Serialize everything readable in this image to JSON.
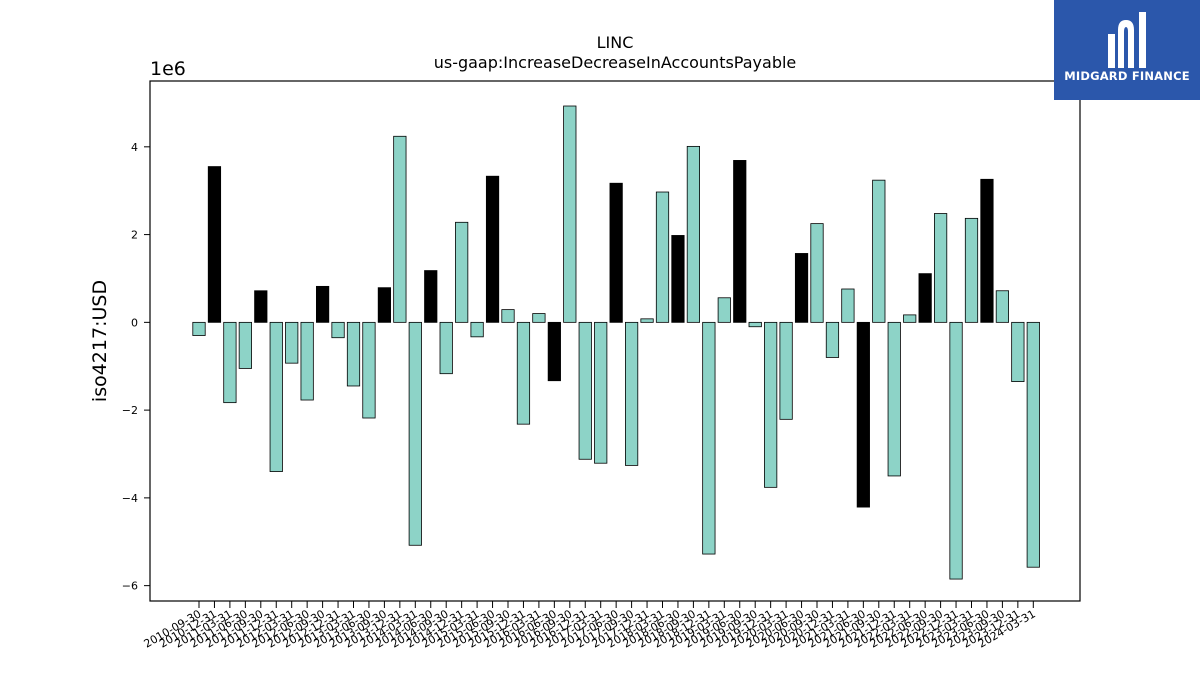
{
  "brand": {
    "name": "MIDGARD FINANCE",
    "icon": "midgard-logo-icon",
    "color": "#2b57ab"
  },
  "chart_data": {
    "type": "bar",
    "title": "LINC",
    "subtitle": "us-gaap:IncreaseDecreaseInAccountsPayable",
    "ylabel": "iso4217:USD",
    "xlabel": "",
    "scale_label": "1e6",
    "ylim": [
      -6350000,
      5500000
    ],
    "yticks": [
      -6000000,
      -4000000,
      -2000000,
      0,
      2000000,
      4000000
    ],
    "ytick_labels": [
      "−6",
      "−4",
      "−2",
      "0",
      "2",
      "4"
    ],
    "grid": false,
    "colors": {
      "default": "#8dd3c7",
      "highlight": "#000000",
      "edge": "#000000"
    },
    "categories": [
      "2010-09-30",
      "2010-12-31",
      "2011-03-31",
      "2011-06-30",
      "2011-09-30",
      "2011-12-31",
      "2012-03-31",
      "2012-06-30",
      "2012-09-30",
      "2012-12-31",
      "2013-03-31",
      "2013-06-30",
      "2013-09-30",
      "2013-12-31",
      "2014-03-31",
      "2014-06-30",
      "2014-09-30",
      "2014-12-31",
      "2015-03-31",
      "2015-06-30",
      "2015-09-30",
      "2015-12-31",
      "2016-03-31",
      "2016-06-30",
      "2016-09-30",
      "2016-12-31",
      "2017-03-31",
      "2017-06-30",
      "2017-09-30",
      "2017-12-31",
      "2018-03-31",
      "2018-06-30",
      "2018-09-30",
      "2018-12-31",
      "2019-03-31",
      "2019-06-30",
      "2019-09-30",
      "2019-12-31",
      "2020-03-31",
      "2020-06-30",
      "2020-09-30",
      "2020-12-31",
      "2021-03-31",
      "2021-06-30",
      "2021-09-30",
      "2021-12-31",
      "2022-03-31",
      "2022-06-30",
      "2022-09-30",
      "2022-12-31",
      "2023-03-31",
      "2023-06-30",
      "2023-09-30",
      "2023-12-31",
      "2024-03-31"
    ],
    "values": [
      -300000,
      3550000,
      -1830000,
      -1050000,
      720000,
      -3400000,
      -930000,
      -1770000,
      820000,
      -350000,
      -1450000,
      -2180000,
      790000,
      4240000,
      -5080000,
      1180000,
      -1170000,
      2280000,
      -330000,
      3330000,
      290000,
      -2320000,
      200000,
      -1330000,
      4930000,
      -3120000,
      -3210000,
      3170000,
      -3260000,
      80000,
      2970000,
      1980000,
      4010000,
      -5280000,
      560000,
      3690000,
      -100000,
      -3760000,
      -2210000,
      1570000,
      2250000,
      -800000,
      760000,
      -4210000,
      3240000,
      -3500000,
      170000,
      1110000,
      2480000,
      -5850000,
      2370000,
      3260000,
      720000,
      -1350000,
      -5580000
    ],
    "highlighted": [
      "2010-12-31",
      "2011-09-30",
      "2012-09-30",
      "2013-09-30",
      "2014-06-30",
      "2015-06-30",
      "2016-06-30",
      "2017-06-30",
      "2018-06-30",
      "2019-06-30",
      "2020-06-30",
      "2021-06-30",
      "2022-06-30",
      "2023-06-30"
    ]
  }
}
